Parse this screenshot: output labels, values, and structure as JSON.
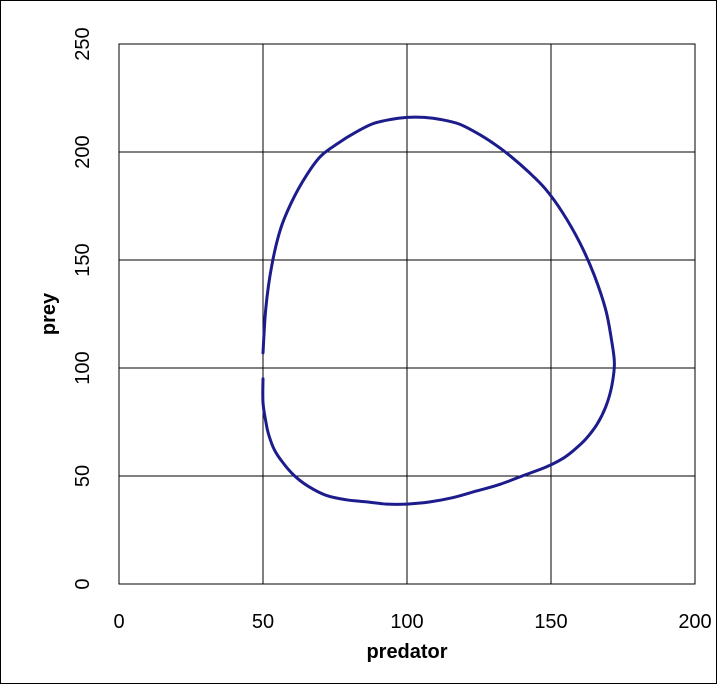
{
  "chart_data": {
    "type": "line",
    "title": "",
    "xlabel": "predator",
    "ylabel": "prey",
    "xlim": [
      0,
      200
    ],
    "ylim": [
      0,
      250
    ],
    "x_ticks": [
      0,
      50,
      100,
      150,
      200
    ],
    "y_ticks": [
      0,
      50,
      100,
      150,
      200,
      250
    ],
    "grid": true,
    "legend": "none",
    "series": [
      {
        "color": "#1c1c8c",
        "x": [
          50,
          51,
          53,
          56,
          60,
          65,
          70,
          76,
          82,
          88,
          94,
          100,
          106,
          112,
          118,
          124,
          130,
          136,
          142,
          148,
          154,
          160,
          165,
          169,
          171,
          172,
          171,
          169,
          166,
          162,
          158,
          154,
          148,
          140,
          132,
          124,
          116,
          108,
          100,
          93,
          86,
          79,
          72,
          66,
          61,
          57,
          54,
          52,
          51,
          50,
          50
        ],
        "y": [
          107,
          128,
          147,
          164,
          177,
          189,
          198,
          204,
          209,
          213,
          215,
          216,
          216,
          215,
          213,
          209,
          204,
          198,
          191,
          183,
          172,
          158,
          143,
          127,
          113,
          102,
          91,
          82,
          74,
          67,
          62,
          58,
          54,
          50,
          46,
          43,
          40,
          38,
          37,
          37,
          38,
          39,
          41,
          45,
          50,
          56,
          62,
          69,
          75,
          84,
          95
        ]
      }
    ]
  }
}
